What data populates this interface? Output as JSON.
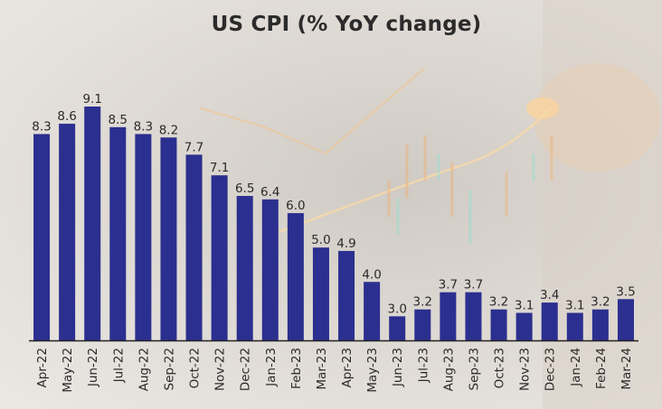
{
  "chart_data": {
    "type": "bar",
    "title": "US CPI (% YoY change)",
    "xlabel": "",
    "ylabel": "",
    "categories": [
      "Apr-22",
      "May-22",
      "Jun-22",
      "Jul-22",
      "Aug-22",
      "Sep-22",
      "Oct-22",
      "Nov-22",
      "Dec-22",
      "Jan-23",
      "Feb-23",
      "Mar-23",
      "Apr-23",
      "May-23",
      "Jun-23",
      "Jul-23",
      "Aug-23",
      "Sep-23",
      "Oct-23",
      "Nov-23",
      "Dec-23",
      "Jan-24",
      "Feb-24",
      "Mar-24"
    ],
    "values": [
      8.3,
      8.6,
      9.1,
      8.5,
      8.3,
      8.2,
      7.7,
      7.1,
      6.5,
      6.4,
      6.0,
      5.0,
      4.9,
      4.0,
      3.0,
      3.2,
      3.7,
      3.7,
      3.2,
      3.1,
      3.4,
      3.1,
      3.2,
      3.5
    ],
    "value_labels": [
      "8.3",
      "8.6",
      "9.1",
      "8.5",
      "8.3",
      "8.2",
      "7.7",
      "7.1",
      "6.5",
      "6.4",
      "6.0",
      "5.0",
      "4.9",
      "4.0",
      "3.0",
      "3.2",
      "3.7",
      "3.7",
      "3.2",
      "3.1",
      "3.4",
      "3.1",
      "3.2",
      "3.5"
    ],
    "ylim": [
      2.3,
      9.1
    ],
    "grid": false,
    "legend": "none",
    "bar_color": "#2b2f8f"
  }
}
